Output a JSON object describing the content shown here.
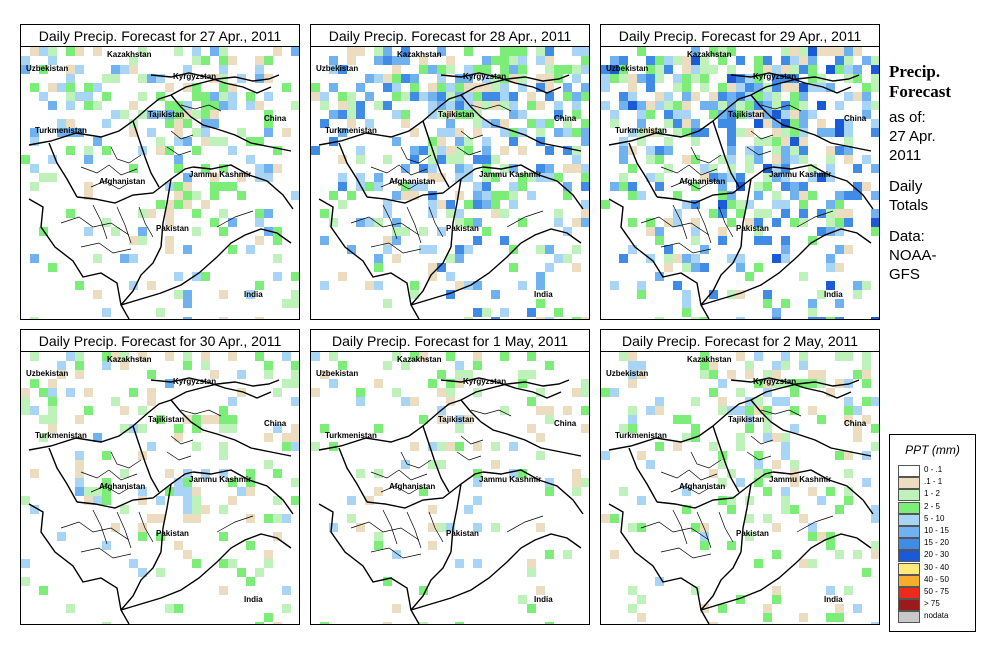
{
  "title_prefix": "Daily Precip. Forecast for",
  "panels": [
    {
      "title": "Daily Precip. Forecast for  27 Apr., 2011",
      "date": "27 Apr., 2011",
      "intensity": 1.0,
      "seed": 11
    },
    {
      "title": "Daily Precip. Forecast for  28 Apr., 2011",
      "date": "28 Apr., 2011",
      "intensity": 1.5,
      "seed": 23
    },
    {
      "title": "Daily Precip. Forecast for  29 Apr., 2011",
      "date": "29 Apr., 2011",
      "intensity": 1.7,
      "seed": 37
    },
    {
      "title": "Daily Precip. Forecast for  30 Apr., 2011",
      "date": "30 Apr., 2011",
      "intensity": 0.8,
      "seed": 41
    },
    {
      "title": "Daily Precip. Forecast for  1 May, 2011",
      "date": "1 May, 2011",
      "intensity": 0.55,
      "seed": 53
    },
    {
      "title": "Daily Precip. Forecast for  2 May, 2011",
      "date": "2 May, 2011",
      "intensity": 0.7,
      "seed": 67
    }
  ],
  "map_labels": [
    "Kazakhstan",
    "Uzbekistan",
    "Kyrgyzstan",
    "Tajikistan",
    "China",
    "Turkmenistan",
    "Afghanistan",
    "Jammu Kashmir",
    "Pakistan",
    "India"
  ],
  "side_text": {
    "heading_1": "Precip.",
    "heading_2": "Forecast",
    "asof": "as of:",
    "asof_date": "27 Apr.",
    "asof_year": "2011",
    "daily": "Daily",
    "totals": "Totals",
    "data_label": "Data:",
    "source_1": "NOAA-",
    "source_2": "GFS"
  },
  "legend": {
    "title": "PPT (mm)",
    "items": [
      {
        "label": "0 - .1",
        "color": "#ffffff"
      },
      {
        "label": ".1 - 1",
        "color": "#ecdcc0"
      },
      {
        "label": "1 - 2",
        "color": "#bff2ba"
      },
      {
        "label": "2 - 5",
        "color": "#7ded7a"
      },
      {
        "label": "5 - 10",
        "color": "#a8d4f5"
      },
      {
        "label": "10 - 15",
        "color": "#6fb2ef"
      },
      {
        "label": "15 - 20",
        "color": "#3f8be6"
      },
      {
        "label": "20 - 30",
        "color": "#1a5ad6"
      },
      {
        "label": "30 - 40",
        "color": "#ffe97a"
      },
      {
        "label": "40 - 50",
        "color": "#f5ad2b"
      },
      {
        "label": "50 - 75",
        "color": "#ee2a1a"
      },
      {
        "label": "> 75",
        "color": "#9c1a1a"
      },
      {
        "label": "nodata",
        "color": "#c8c8c8"
      }
    ]
  }
}
